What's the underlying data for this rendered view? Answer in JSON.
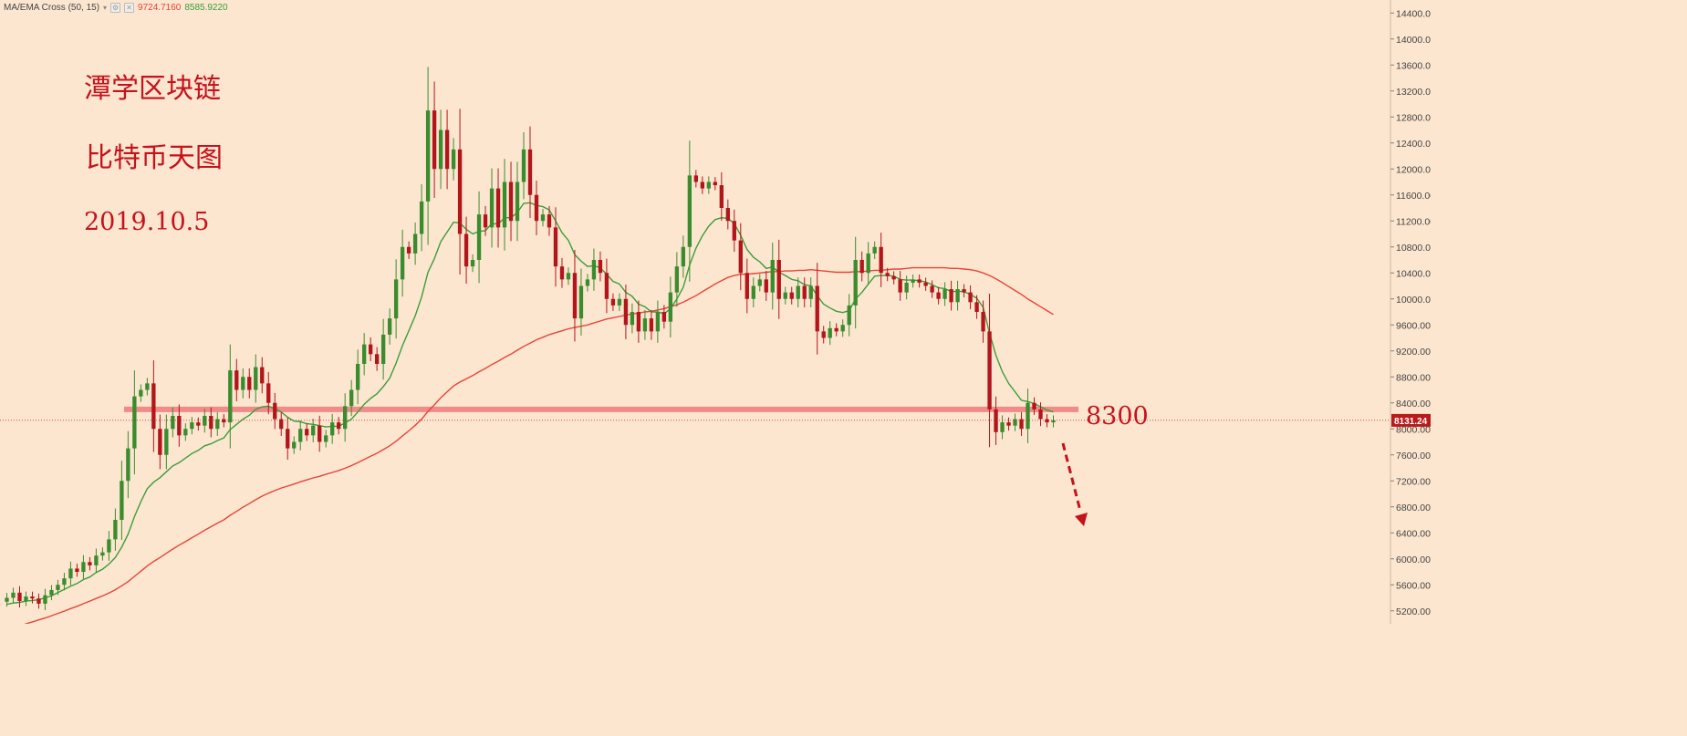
{
  "indicator": {
    "name": "MA/EMA Cross (50, 15)",
    "value_slow": "9724.7160",
    "value_fast": "8585.9220",
    "color_slow": "#e8443a",
    "color_fast": "#3a9e3a"
  },
  "titles": {
    "line1": "潭学区块链",
    "line2": "比特币天图",
    "line3": "2019.10.5"
  },
  "annotation": {
    "level_label": "8300",
    "level": 8300,
    "level_color": "#f08080",
    "arrow_color": "#c5121c"
  },
  "price_tag": {
    "label": "8131.24",
    "value": 8131.24,
    "color": "#b71c1c"
  },
  "colors": {
    "background": "#fce6cf",
    "up_candle": "#3a8c2f",
    "down_candle": "#b3151b"
  },
  "chart_data": {
    "type": "candlestick",
    "ylim": [
      5000,
      14600
    ],
    "yticks": [
      5200,
      5600,
      6000,
      6400,
      6800,
      7200,
      7600,
      8000,
      8400,
      8800,
      9200,
      9600,
      10000,
      10400,
      10800,
      11200,
      11600,
      12000,
      12400,
      12800,
      13200,
      13600,
      14000,
      14400
    ],
    "ytick_labels": [
      "5200.00",
      "5600.00",
      "6000.00",
      "6400.00",
      "6800.00",
      "7200.00",
      "7600.00",
      "8000.00",
      "8400.00",
      "8800.00",
      "9200.00",
      "9600.00",
      "10000.00",
      "10400.00",
      "10800.00",
      "11200.00",
      "11600.00",
      "12000.00",
      "12400.00",
      "12800.00",
      "13200.00",
      "13600.00",
      "14000.00",
      "14400.00"
    ],
    "close": [
      5400,
      5480,
      5350,
      5420,
      5390,
      5310,
      5440,
      5520,
      5600,
      5700,
      5850,
      5800,
      5950,
      5900,
      6050,
      6100,
      6300,
      6600,
      7200,
      7700,
      8500,
      8600,
      8700,
      8000,
      7600,
      8000,
      8200,
      7900,
      8000,
      8100,
      8050,
      8200,
      8000,
      8150,
      8100,
      8900,
      8600,
      8800,
      8600,
      8950,
      8700,
      8400,
      8150,
      8000,
      7700,
      7800,
      8000,
      7900,
      8050,
      7800,
      7900,
      8100,
      8000,
      8350,
      8600,
      9000,
      9300,
      9150,
      9000,
      9450,
      9700,
      10300,
      10800,
      10700,
      11000,
      11500,
      12900,
      12000,
      12600,
      12000,
      12300,
      11000,
      10500,
      10600,
      11300,
      11100,
      11700,
      11100,
      11800,
      11200,
      11800,
      12300,
      11600,
      11200,
      11300,
      11100,
      10500,
      10300,
      10400,
      9700,
      10200,
      10300,
      10600,
      10400,
      10000,
      9900,
      10000,
      9600,
      9800,
      9500,
      9700,
      9500,
      9800,
      9650,
      10100,
      10500,
      10800,
      11900,
      11800,
      11700,
      11800,
      11750,
      11400,
      11200,
      10900,
      10400,
      10000,
      10200,
      10300,
      10100,
      10600,
      10000,
      10100,
      10000,
      10200,
      10000,
      10200,
      9500,
      9400,
      9550,
      9500,
      9600,
      9900,
      10600,
      10400,
      10700,
      10800,
      10400,
      10350,
      10300,
      10100,
      10250,
      10300,
      10250,
      10200,
      10100,
      10000,
      10150,
      9950,
      10150,
      10100,
      9950,
      9800,
      9500,
      8300,
      7950,
      8100,
      8050,
      8150,
      8000,
      8400,
      8300,
      8150,
      8100,
      8131
    ],
    "ma_fast": [
      5300,
      5320,
      5330,
      5350,
      5360,
      5370,
      5400,
      5430,
      5480,
      5530,
      5580,
      5620,
      5680,
      5720,
      5790,
      5840,
      5920,
      6020,
      6180,
      6380,
      6650,
      6880,
      7080,
      7180,
      7250,
      7340,
      7430,
      7480,
      7550,
      7620,
      7670,
      7740,
      7770,
      7820,
      7860,
      7990,
      8070,
      8150,
      8210,
      8300,
      8340,
      8350,
      8310,
      8260,
      8180,
      8120,
      8110,
      8080,
      8070,
      8050,
      8030,
      8040,
      8040,
      8090,
      8150,
      8260,
      8380,
      8470,
      8540,
      8650,
      8780,
      9010,
      9280,
      9510,
      9740,
      10030,
      10410,
      10620,
      10880,
      11030,
      11180,
      11170,
      11070,
      11000,
      11040,
      11050,
      11160,
      11150,
      11250,
      11250,
      11330,
      11470,
      11480,
      11440,
      11420,
      11370,
      11200,
      11020,
      10900,
      10680,
      10580,
      10500,
      10510,
      10480,
      10380,
      10270,
      10230,
      10100,
      10040,
      9920,
      9880,
      9800,
      9800,
      9770,
      9850,
      10000,
      10180,
      10520,
      10780,
      10970,
      11120,
      11220,
      11250,
      11240,
      11160,
      10980,
      10760,
      10640,
      10570,
      10470,
      10490,
      10410,
      10360,
      10300,
      10280,
      10220,
      10200,
      10050,
      9920,
      9860,
      9810,
      9790,
      9820,
      10000,
      10100,
      10230,
      10350,
      10360,
      10360,
      10350,
      10300,
      10290,
      10290,
      10280,
      10260,
      10220,
      10170,
      10160,
      10110,
      10120,
      10110,
      10070,
      10010,
      9870,
      9470,
      9130,
      8880,
      8700,
      8570,
      8440,
      8420,
      8390,
      8340,
      8290,
      8260
    ],
    "ma_slow": [
      4900,
      4935,
      4965,
      5000,
      5030,
      5060,
      5090,
      5125,
      5160,
      5195,
      5235,
      5270,
      5310,
      5350,
      5390,
      5430,
      5475,
      5525,
      5585,
      5650,
      5730,
      5810,
      5890,
      5960,
      6020,
      6085,
      6150,
      6210,
      6265,
      6325,
      6380,
      6440,
      6495,
      6550,
      6600,
      6670,
      6730,
      6795,
      6850,
      6910,
      6965,
      7010,
      7050,
      7090,
      7120,
      7150,
      7185,
      7215,
      7245,
      7270,
      7300,
      7330,
      7360,
      7395,
      7435,
      7480,
      7530,
      7580,
      7625,
      7680,
      7740,
      7810,
      7890,
      7970,
      8055,
      8150,
      8270,
      8370,
      8480,
      8570,
      8660,
      8720,
      8770,
      8820,
      8880,
      8930,
      8990,
      9040,
      9100,
      9150,
      9210,
      9270,
      9320,
      9370,
      9410,
      9450,
      9480,
      9510,
      9540,
      9560,
      9580,
      9600,
      9630,
      9660,
      9690,
      9710,
      9730,
      9750,
      9770,
      9780,
      9800,
      9810,
      9830,
      9850,
      9880,
      9910,
      9950,
      10000,
      10050,
      10110,
      10170,
      10230,
      10280,
      10330,
      10360,
      10380,
      10380,
      10390,
      10400,
      10410,
      10420,
      10420,
      10430,
      10430,
      10440,
      10440,
      10450,
      10440,
      10430,
      10420,
      10410,
      10410,
      10410,
      10420,
      10420,
      10430,
      10440,
      10440,
      10450,
      10460,
      10460,
      10470,
      10480,
      10480,
      10480,
      10480,
      10480,
      10480,
      10470,
      10470,
      10460,
      10450,
      10430,
      10400,
      10360,
      10310,
      10250,
      10190,
      10130,
      10070,
      10000,
      9940,
      9880,
      9820,
      9760
    ]
  }
}
